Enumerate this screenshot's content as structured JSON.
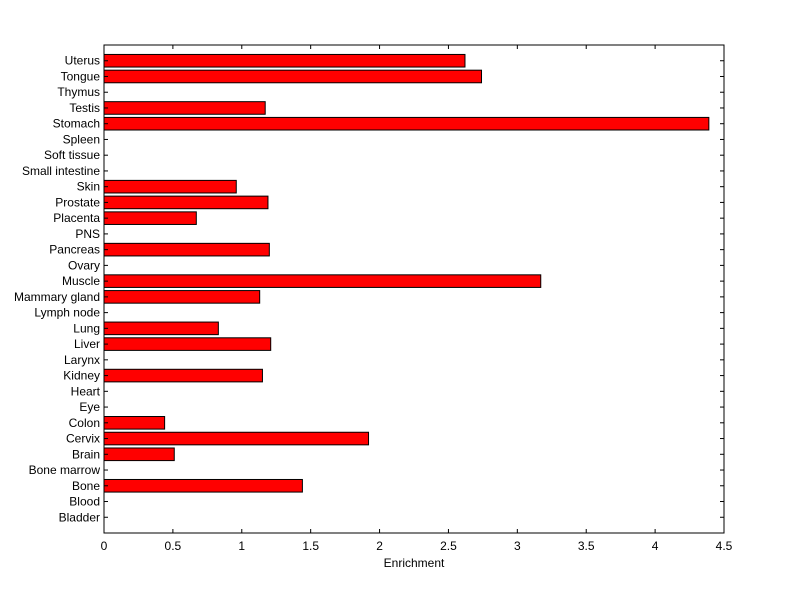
{
  "chart_data": {
    "type": "bar",
    "orientation": "horizontal",
    "title": "",
    "xlabel": "Enrichment",
    "ylabel": "",
    "xlim": [
      0,
      4.5
    ],
    "xticks": [
      "0",
      "0.5",
      "1",
      "1.5",
      "2",
      "2.5",
      "3",
      "3.5",
      "4",
      "4.5"
    ],
    "grid": false,
    "bar_color": "#ff0000",
    "bar_edge_color": "#000000",
    "categories": [
      "Uterus",
      "Tongue",
      "Thymus",
      "Testis",
      "Stomach",
      "Spleen",
      "Soft tissue",
      "Small intestine",
      "Skin",
      "Prostate",
      "Placenta",
      "PNS",
      "Pancreas",
      "Ovary",
      "Muscle",
      "Mammary gland",
      "Lymph node",
      "Lung",
      "Liver",
      "Larynx",
      "Kidney",
      "Heart",
      "Eye",
      "Colon",
      "Cervix",
      "Brain",
      "Bone marrow",
      "Bone",
      "Blood",
      "Bladder"
    ],
    "values": [
      2.62,
      2.74,
      0,
      1.17,
      4.39,
      0,
      0,
      0,
      0.96,
      1.19,
      0.67,
      0,
      1.2,
      0,
      3.17,
      1.13,
      0,
      0.83,
      1.21,
      0,
      1.15,
      0,
      0,
      0.44,
      1.92,
      0.51,
      0,
      1.44,
      0,
      0
    ]
  }
}
